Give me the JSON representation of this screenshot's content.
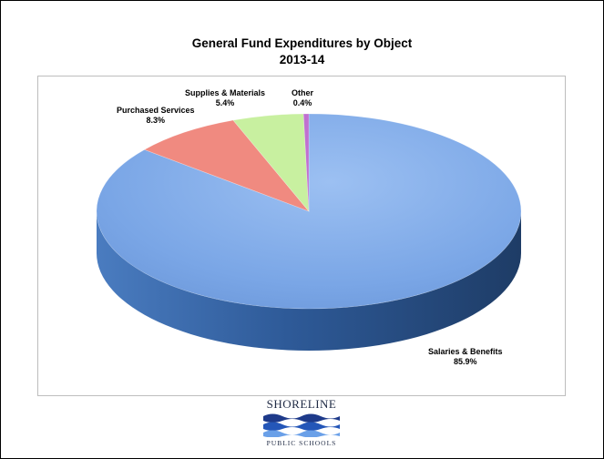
{
  "chart_data": {
    "type": "pie",
    "title": "General Fund Expenditures by Object",
    "subtitle": "2013-14",
    "slices": [
      {
        "label": "Salaries & Benefits",
        "display": "85.9%",
        "value": 85.9,
        "color": "#7aa6e6",
        "dark": "#3a6aa8"
      },
      {
        "label": "Purchased Services",
        "display": "8.3%",
        "value": 8.3,
        "color": "#f08a80",
        "dark": "#b04a40"
      },
      {
        "label": "Supplies & Materials",
        "display": "5.4%",
        "value": 5.4,
        "color": "#c8f0a0",
        "dark": "#8ab860"
      },
      {
        "label": "Other",
        "display": "0.4%",
        "value": 0.4,
        "color": "#c070d0",
        "dark": "#803090"
      }
    ]
  },
  "logo": {
    "name": "SHORELINE",
    "subtitle": "PUBLIC SCHOOLS"
  }
}
